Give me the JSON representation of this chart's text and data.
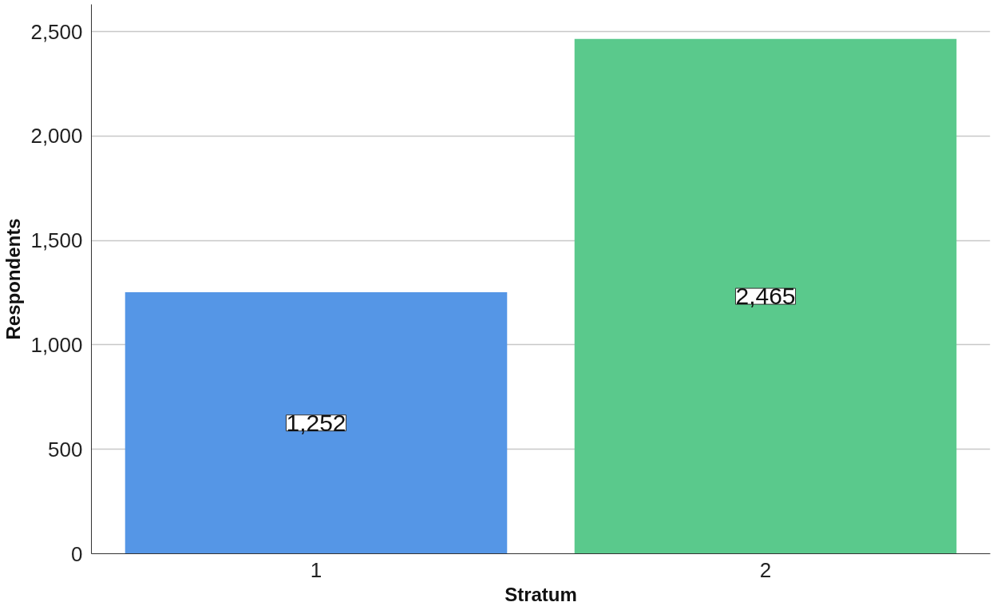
{
  "chart_data": {
    "type": "bar",
    "xlabel": "Stratum",
    "ylabel": "Respondents",
    "categories": [
      "1",
      "2"
    ],
    "values": [
      1252,
      2465
    ],
    "colors": [
      "#5596e6",
      "#5ac98c"
    ],
    "ylim": [
      0,
      2630
    ],
    "yticks": [
      {
        "value": 0,
        "label": "0"
      },
      {
        "value": 500,
        "label": "500"
      },
      {
        "value": 1000,
        "label": "1,000"
      },
      {
        "value": 1500,
        "label": "1,500"
      },
      {
        "value": 2000,
        "label": "2,000"
      },
      {
        "value": 2500,
        "label": "2,500"
      }
    ],
    "value_labels": [
      "1,252",
      "2,465"
    ],
    "grid": "y"
  }
}
